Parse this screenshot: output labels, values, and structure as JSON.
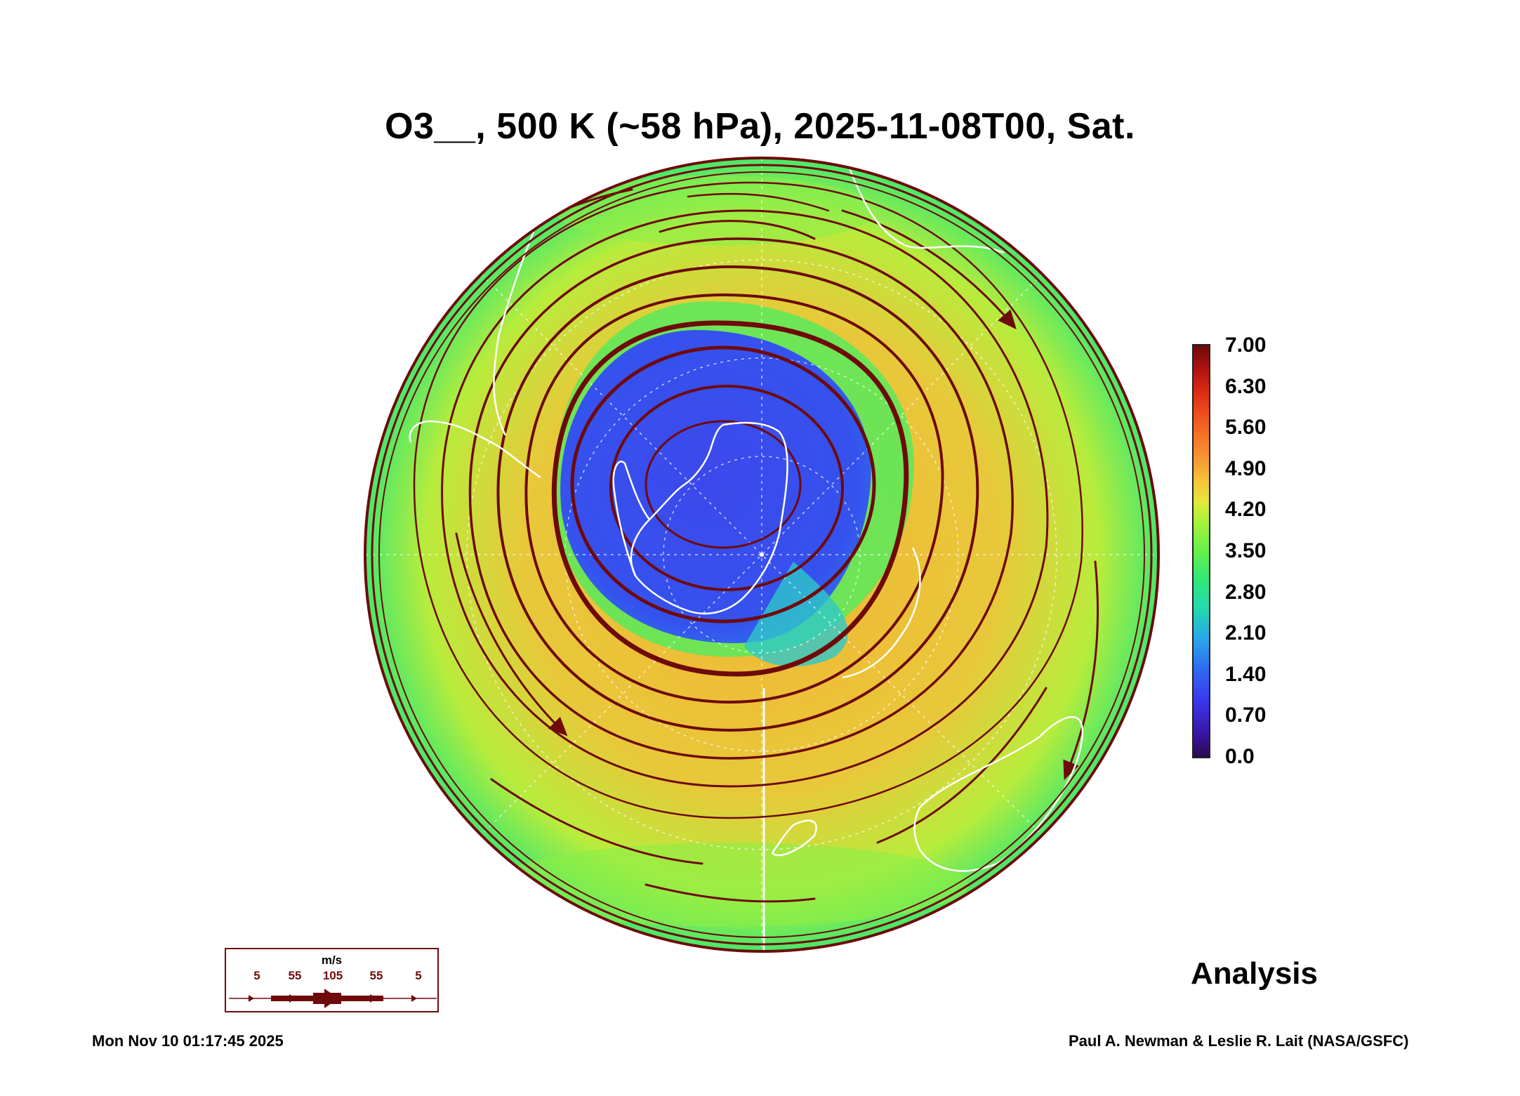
{
  "title": "O3__, 500 K (~58 hPa), 2025-11-08T00, Sat.",
  "colorbar": {
    "labels": [
      "7.00",
      "6.30",
      "5.60",
      "4.90",
      "4.20",
      "3.50",
      "2.80",
      "2.10",
      "1.40",
      "0.70",
      "0.0"
    ],
    "min": 0.0,
    "max": 7.0
  },
  "legend": {
    "units": "m/s",
    "speeds": [
      "5",
      "55",
      "105",
      "55",
      "5"
    ]
  },
  "analysis_label": "Analysis",
  "timestamp": "Mon Nov 10 01:17:45 2025",
  "credit": "Paul A. Newman & Leslie R. Lait (NASA/GSFC)",
  "colors": {
    "vortex": "#3a3aee",
    "streamline": "#6e0a0a",
    "coast": "#ffffff"
  }
}
